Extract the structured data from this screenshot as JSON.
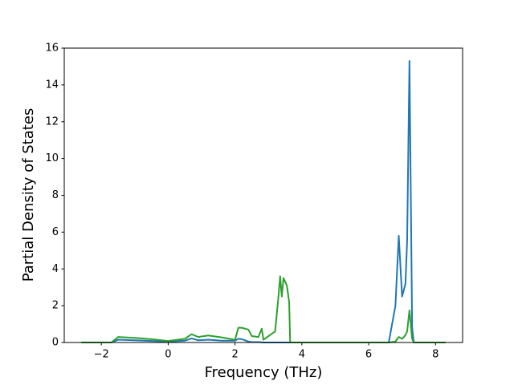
{
  "chart_data": {
    "type": "line",
    "xlabel": "Frequency (THz)",
    "ylabel": "Partial Density of States",
    "x": [
      -2.6,
      -1.7,
      -1.5,
      -1.0,
      -0.5,
      0,
      0.5,
      0.7,
      0.9,
      1.2,
      1.6,
      2.0,
      2.1,
      2.2,
      2.4,
      2.5,
      2.7,
      2.8,
      2.85,
      3.2,
      3.3,
      3.35,
      3.4,
      3.45,
      3.55,
      3.62,
      3.65,
      6.6,
      6.8,
      6.9,
      7.0,
      7.1,
      7.15,
      7.22,
      7.3,
      7.35,
      8.3
    ],
    "series": [
      {
        "color": "#1f77b4",
        "values": [
          0,
          0,
          0.15,
          0.12,
          0.08,
          0.05,
          0.1,
          0.22,
          0.12,
          0.15,
          0.1,
          0.1,
          0.2,
          0.18,
          0.05,
          0.02,
          0.02,
          0.01,
          0,
          0,
          0,
          0,
          0,
          0,
          0,
          0,
          0,
          0,
          2.0,
          5.8,
          2.5,
          3.2,
          5.5,
          15.3,
          0.8,
          0,
          0
        ]
      },
      {
        "color": "#2ca02c",
        "values": [
          0,
          0,
          0.3,
          0.25,
          0.18,
          0.08,
          0.2,
          0.45,
          0.3,
          0.38,
          0.28,
          0.15,
          0.8,
          0.8,
          0.7,
          0.35,
          0.3,
          0.75,
          0.15,
          0.6,
          2.5,
          3.6,
          2.5,
          3.5,
          3.1,
          2.2,
          0,
          0,
          0.05,
          0.3,
          0.2,
          0.4,
          0.6,
          1.75,
          0.2,
          0,
          0
        ]
      }
    ],
    "xlim": [
      -3.11,
      8.81
    ],
    "ylim": [
      0,
      16
    ],
    "xticks": [
      {
        "value": -2,
        "label": "−2"
      },
      0,
      2,
      4,
      6,
      8
    ],
    "yticks": [
      0,
      2,
      4,
      6,
      8,
      10,
      12,
      14,
      16
    ]
  }
}
